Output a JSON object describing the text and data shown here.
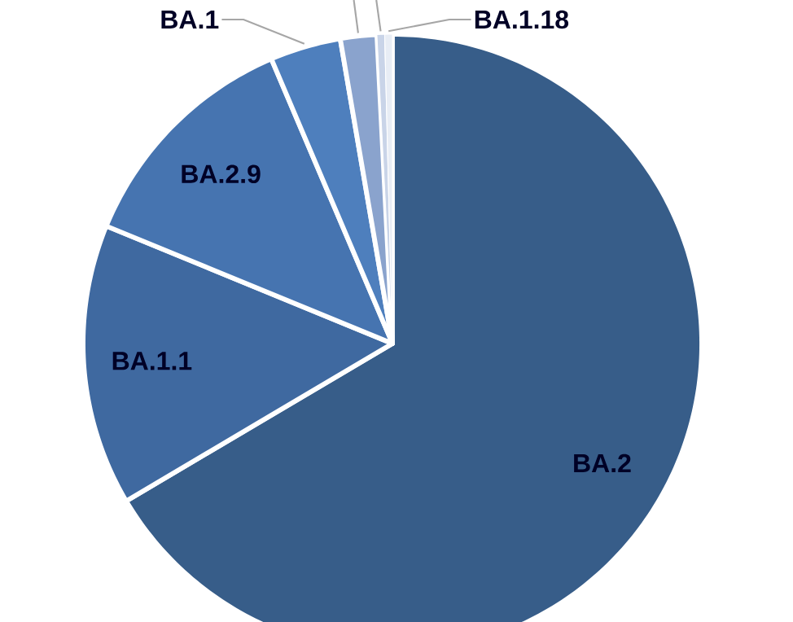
{
  "chart_data": {
    "type": "pie",
    "categories": [
      "BA.2",
      "BA.1.1",
      "BA.2.9",
      "BA.1",
      null,
      null,
      "BA.1.18"
    ],
    "values": [
      66.5,
      14.7,
      12.4,
      3.7,
      1.9,
      0.4,
      0.4
    ],
    "colors": [
      "#375d89",
      "#3f69a0",
      "#4674b0",
      "#4e7fbd",
      "#8aa3cd",
      "#c9d4e8",
      "#e8edf5"
    ]
  }
}
